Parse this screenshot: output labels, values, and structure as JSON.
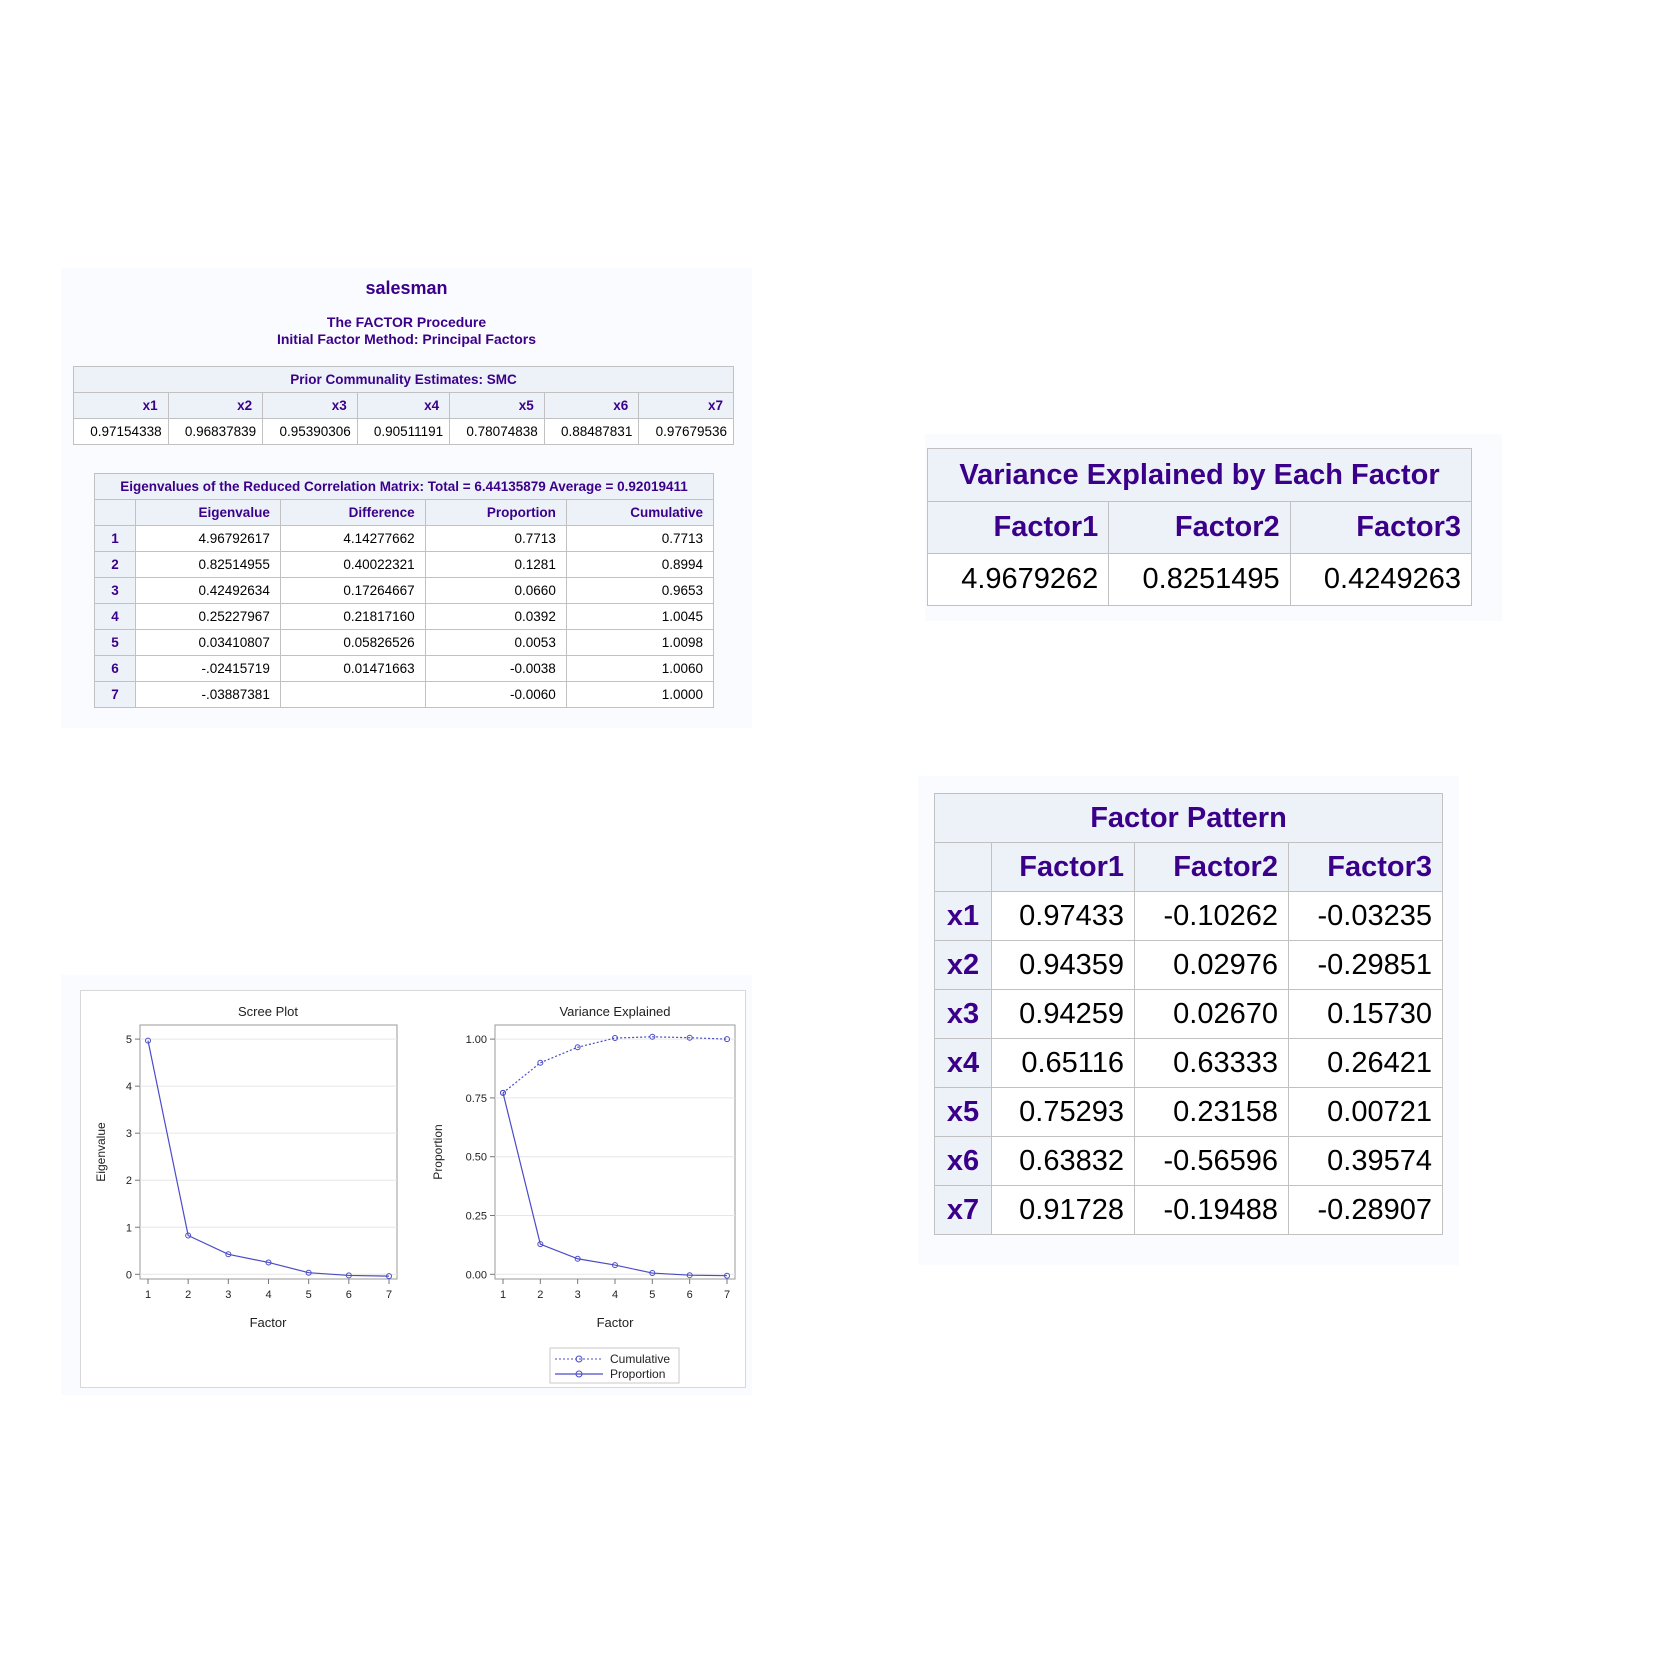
{
  "header": {
    "dataset": "salesman",
    "procedure": "The FACTOR Procedure",
    "method": "Initial Factor Method: Principal Factors"
  },
  "prior_communality": {
    "title": "Prior Communality Estimates: SMC",
    "columns": [
      "x1",
      "x2",
      "x3",
      "x4",
      "x5",
      "x6",
      "x7"
    ],
    "values": [
      "0.97154338",
      "0.96837839",
      "0.95390306",
      "0.90511191",
      "0.78074838",
      "0.88487831",
      "0.97679536"
    ]
  },
  "eigen_table": {
    "title": "Eigenvalues of the Reduced Correlation Matrix: Total = 6.44135879 Average = 0.92019411",
    "columns": [
      "",
      "Eigenvalue",
      "Difference",
      "Proportion",
      "Cumulative"
    ],
    "rows": [
      [
        "1",
        "4.96792617",
        "4.14277662",
        "0.7713",
        "0.7713"
      ],
      [
        "2",
        "0.82514955",
        "0.40022321",
        "0.1281",
        "0.8994"
      ],
      [
        "3",
        "0.42492634",
        "0.17264667",
        "0.0660",
        "0.9653"
      ],
      [
        "4",
        "0.25227967",
        "0.21817160",
        "0.0392",
        "1.0045"
      ],
      [
        "5",
        "0.03410807",
        "0.05826526",
        "0.0053",
        "1.0098"
      ],
      [
        "6",
        "-.02415719",
        "0.01471663",
        "-0.0038",
        "1.0060"
      ],
      [
        "7",
        "-.03887381",
        "",
        "-0.0060",
        "1.0000"
      ]
    ]
  },
  "variance_explained": {
    "title": "Variance Explained by Each Factor",
    "columns": [
      "Factor1",
      "Factor2",
      "Factor3"
    ],
    "values": [
      "4.9679262",
      "0.8251495",
      "0.4249263"
    ]
  },
  "factor_pattern": {
    "title": "Factor Pattern",
    "columns": [
      "",
      "Factor1",
      "Factor2",
      "Factor3"
    ],
    "rows": [
      [
        "x1",
        "0.97433",
        "-0.10262",
        "-0.03235"
      ],
      [
        "x2",
        "0.94359",
        "0.02976",
        "-0.29851"
      ],
      [
        "x3",
        "0.94259",
        "0.02670",
        "0.15730"
      ],
      [
        "x4",
        "0.65116",
        "0.63333",
        "0.26421"
      ],
      [
        "x5",
        "0.75293",
        "0.23158",
        "0.00721"
      ],
      [
        "x6",
        "0.63832",
        "-0.56596",
        "0.39574"
      ],
      [
        "x7",
        "0.91728",
        "-0.19488",
        "-0.28907"
      ]
    ]
  },
  "colors": {
    "heading": "#3b0089",
    "header_bg": "#edf2f9",
    "series": "#4b4bc8"
  },
  "chart_data": [
    {
      "type": "line",
      "title": "Scree Plot",
      "xlabel": "Factor",
      "ylabel": "Eigenvalue",
      "x": [
        1,
        2,
        3,
        4,
        5,
        6,
        7
      ],
      "xticks": [
        "1",
        "2",
        "3",
        "4",
        "5",
        "6",
        "7"
      ],
      "yticks": [
        "0",
        "1",
        "2",
        "3",
        "4",
        "5"
      ],
      "ylim": [
        -0.1,
        5.3
      ],
      "series": [
        {
          "values": [
            4.968,
            0.825,
            0.425,
            0.252,
            0.034,
            -0.024,
            -0.039
          ]
        }
      ],
      "grid": true
    },
    {
      "type": "line",
      "title": "Variance Explained",
      "xlabel": "Factor",
      "ylabel": "Proportion",
      "x": [
        1,
        2,
        3,
        4,
        5,
        6,
        7
      ],
      "xticks": [
        "1",
        "2",
        "3",
        "4",
        "5",
        "6",
        "7"
      ],
      "yticks": [
        "0.00",
        "0.25",
        "0.50",
        "0.75",
        "1.00"
      ],
      "ylim": [
        -0.02,
        1.06
      ],
      "series": [
        {
          "name": "Cumulative",
          "style": "dotted",
          "values": [
            0.7713,
            0.8994,
            0.9653,
            1.0045,
            1.0098,
            1.006,
            1.0
          ]
        },
        {
          "name": "Proportion",
          "style": "solid",
          "values": [
            0.7713,
            0.1281,
            0.066,
            0.0392,
            0.0053,
            -0.0038,
            -0.006
          ]
        }
      ],
      "legend": "bottom",
      "grid": true
    }
  ]
}
